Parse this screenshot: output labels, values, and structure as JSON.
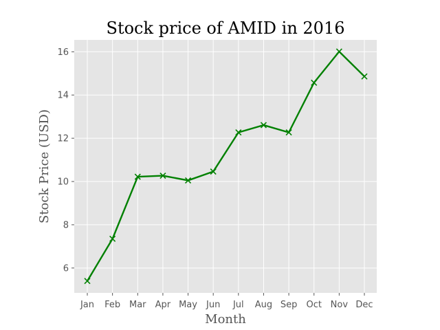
{
  "chart_data": {
    "type": "line",
    "title": "Stock price of AMID in 2016",
    "xlabel": "Month",
    "ylabel": "Stock Price (USD)",
    "categories": [
      "Jan",
      "Feb",
      "Mar",
      "Apr",
      "May",
      "Jun",
      "Jul",
      "Aug",
      "Sep",
      "Oct",
      "Nov",
      "Dec"
    ],
    "series": [
      {
        "values": [
          5.4,
          7.35,
          10.22,
          10.27,
          10.05,
          10.46,
          12.27,
          12.61,
          12.27,
          14.57,
          16.01,
          14.86
        ],
        "color": "#008000",
        "marker": "x"
      }
    ],
    "ylim": [
      4.85,
      16.55
    ],
    "yticks": [
      6,
      8,
      10,
      12,
      14,
      16
    ],
    "grid": true,
    "background": "#e5e5e5",
    "grid_color": "#ffffff"
  }
}
